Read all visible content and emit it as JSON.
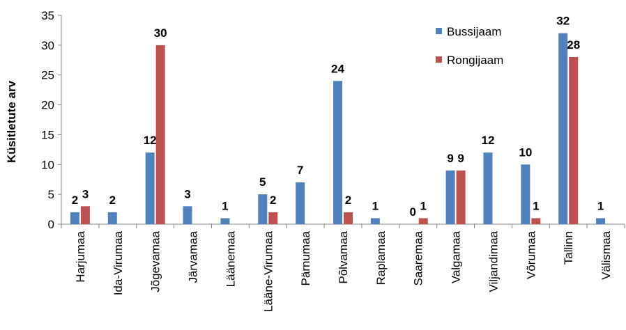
{
  "chart_data": {
    "type": "bar",
    "title": "",
    "xlabel": "",
    "ylabel": "Küsitletute arv",
    "ylim": [
      0,
      35
    ],
    "yticks": [
      0,
      5,
      10,
      15,
      20,
      25,
      30,
      35
    ],
    "grid": false,
    "legend_position": "top-right",
    "categories": [
      "Harjumaa",
      "Ida-Virumaa",
      "Jõgevamaa",
      "Järvamaa",
      "Läänemaa",
      "Lääne-Virumaa",
      "Pärnumaa",
      "Põlvamaa",
      "Raplamaa",
      "Saaremaa",
      "Valgamaa",
      "Viljandimaa",
      "Võrumaa",
      "Tallinn",
      "Välismaa"
    ],
    "series": [
      {
        "name": "Bussijaam",
        "color": "#4F81BD",
        "values": [
          2,
          2,
          12,
          3,
          1,
          5,
          7,
          24,
          1,
          0,
          9,
          12,
          10,
          32,
          1
        ],
        "labels": [
          "2",
          "2",
          "12",
          "3",
          "1",
          "5",
          "7",
          "24",
          "1",
          "0",
          "9",
          "12",
          "10",
          "32",
          "1"
        ]
      },
      {
        "name": "Rongijaam",
        "color": "#C0504D",
        "values": [
          3,
          null,
          30,
          null,
          null,
          2,
          null,
          2,
          null,
          1,
          9,
          null,
          1,
          28,
          null
        ],
        "labels": [
          "3",
          "",
          "30",
          "",
          "",
          "2",
          "",
          "2",
          "",
          "1",
          "9",
          "",
          "1",
          "28",
          ""
        ]
      }
    ]
  }
}
